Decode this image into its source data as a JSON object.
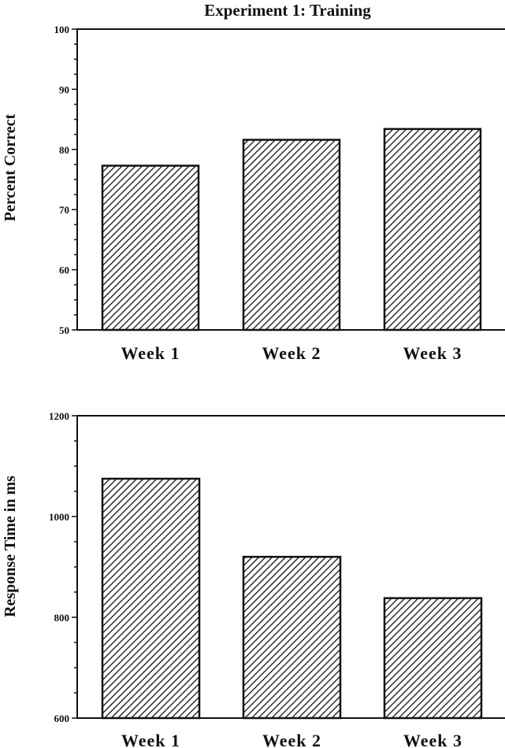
{
  "figure_title": "Experiment 1:  Training",
  "chart_data": [
    {
      "type": "bar",
      "title": "Experiment 1:  Training",
      "xlabel": "",
      "ylabel": "Percent Correct",
      "categories": [
        "Week 1",
        "Week 2",
        "Week 3"
      ],
      "values": [
        77.3,
        81.6,
        83.4
      ],
      "ylim": [
        50,
        100
      ],
      "yticks": [
        50,
        60,
        70,
        80,
        90,
        100
      ],
      "tick_labels": [
        "50",
        "60",
        "70",
        "80",
        "90",
        "100"
      ],
      "grid": false,
      "fill": "diagonal-hatch"
    },
    {
      "type": "bar",
      "title": "",
      "xlabel": "",
      "ylabel": "Response Time in ms",
      "categories": [
        "Week 1",
        "Week 2",
        "Week 3"
      ],
      "values": [
        1075,
        920,
        838
      ],
      "ylim": [
        600,
        1200
      ],
      "yticks": [
        600,
        800,
        1000,
        1200
      ],
      "tick_labels": [
        "600",
        "800",
        "1000",
        "1200"
      ],
      "grid": false,
      "fill": "diagonal-hatch"
    }
  ],
  "colors": {
    "ink": "#111111",
    "background": "#ffffff"
  }
}
